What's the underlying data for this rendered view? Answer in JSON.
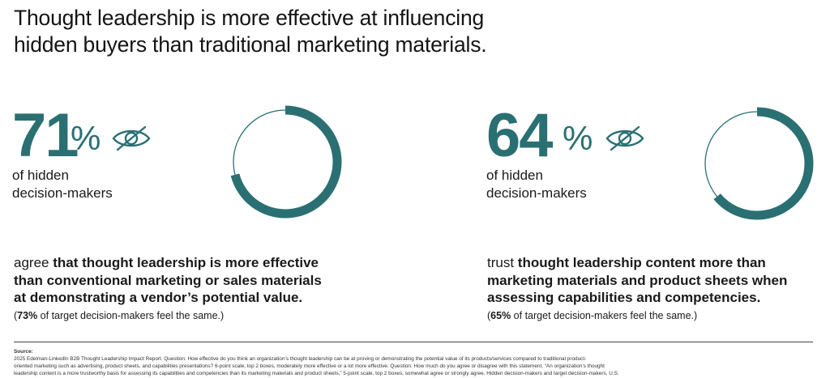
{
  "headline": {
    "line1": "Thought leadership is more effective at influencing",
    "line2": "hidden buyers than traditional marketing materials."
  },
  "stats": [
    {
      "value": "71",
      "unit": "%",
      "icon": "eye-slash-icon",
      "sub_line1": "of hidden",
      "sub_line2": "decision-makers",
      "desc_lead": "agree ",
      "desc_bold_1": "that thought leadership is more effective",
      "desc_bold_2": "than conventional marketing or sales materials",
      "desc_bold_3": "at demonstrating a vendor’s potential value.",
      "note_open": "(",
      "note_bold": "73%",
      "note_rest": " of target decision-makers feel the same.)"
    },
    {
      "value": "64",
      "unit": "%",
      "icon": "eye-slash-icon",
      "sub_line1": "of hidden",
      "sub_line2": "decision-makers",
      "desc_lead": "trust ",
      "desc_bold_1": "thought leadership content more than",
      "desc_bold_2": "marketing materials and product sheets when",
      "desc_bold_3": "assessing capabilities and competencies.",
      "note_open": "(",
      "note_bold": "65%",
      "note_rest": " of target decision-makers feel the same.)"
    }
  ],
  "chart_data": [
    {
      "type": "pie",
      "style": "donut",
      "values": [
        71,
        29
      ],
      "colors": [
        "#2a7073",
        "#2a7073"
      ]
    },
    {
      "type": "pie",
      "style": "donut",
      "values": [
        64,
        36
      ],
      "colors": [
        "#2a7073",
        "#2a7073"
      ]
    }
  ],
  "source": {
    "label": "Source:",
    "line1": " 2025 Edelman-LinkedIn B2B Thought Leadership Impact Report. Question: How effective do you think an organization’s thought leadership can be at proving or demonstrating the potential value of its products/services compared to traditional product-",
    "line2": "oriented marketing such as advertising, product sheets, and capabilities presentations? 6-point scale, top 2 boxes, moderately more effective or a lot more effective. Question: How much do you agree or disagree with this statement, “An organization’s thought",
    "line3": "leadership content is a more trustworthy basis for assessing its capabilities and competencies than its marketing materials and product sheets,” 5-point scale, top 2 boxes, somewhat agree or strongly agree. Hidden decision-makers and target decision-makers, U.S."
  },
  "colors": {
    "accent": "#2a7073",
    "text": "#1a1a1a"
  }
}
